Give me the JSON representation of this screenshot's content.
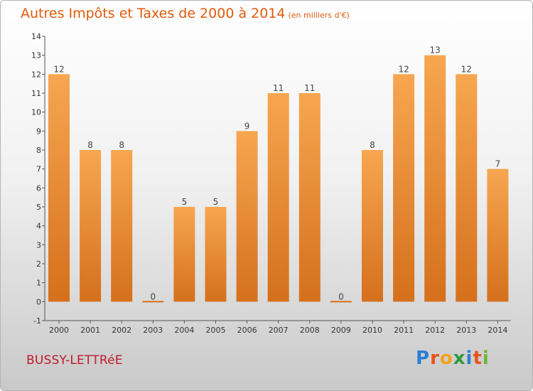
{
  "header": {
    "title": "Autres Impôts et Taxes de 2000 à 2014",
    "unit": "(en milliers d'€)"
  },
  "commune": "BUSSY-LETTRéE",
  "logo": {
    "text": "Proxiti"
  },
  "colors": {
    "bar_light": "#f7a650",
    "bar_dark": "#d5701c",
    "title": "#e05a0c",
    "commune": "#c0192b"
  },
  "chart_data": {
    "type": "bar",
    "categories": [
      "2000",
      "2001",
      "2002",
      "2003",
      "2004",
      "2005",
      "2006",
      "2007",
      "2008",
      "2009",
      "2010",
      "2011",
      "2012",
      "2013",
      "2014"
    ],
    "values": [
      12,
      8,
      8,
      0,
      5,
      5,
      9,
      11,
      11,
      0,
      8,
      12,
      13,
      12,
      7
    ],
    "data_labels": [
      "12",
      "8",
      "8",
      "0",
      "5",
      "5",
      "9",
      "11",
      "11",
      "0",
      "8",
      "12",
      "13",
      "12",
      "7"
    ],
    "ylim": [
      -1,
      14
    ],
    "yticks": [
      "-1",
      "0",
      "1",
      "2",
      "3",
      "4",
      "5",
      "6",
      "7",
      "8",
      "9",
      "10",
      "11",
      "12",
      "13",
      "14"
    ],
    "grid": false
  }
}
